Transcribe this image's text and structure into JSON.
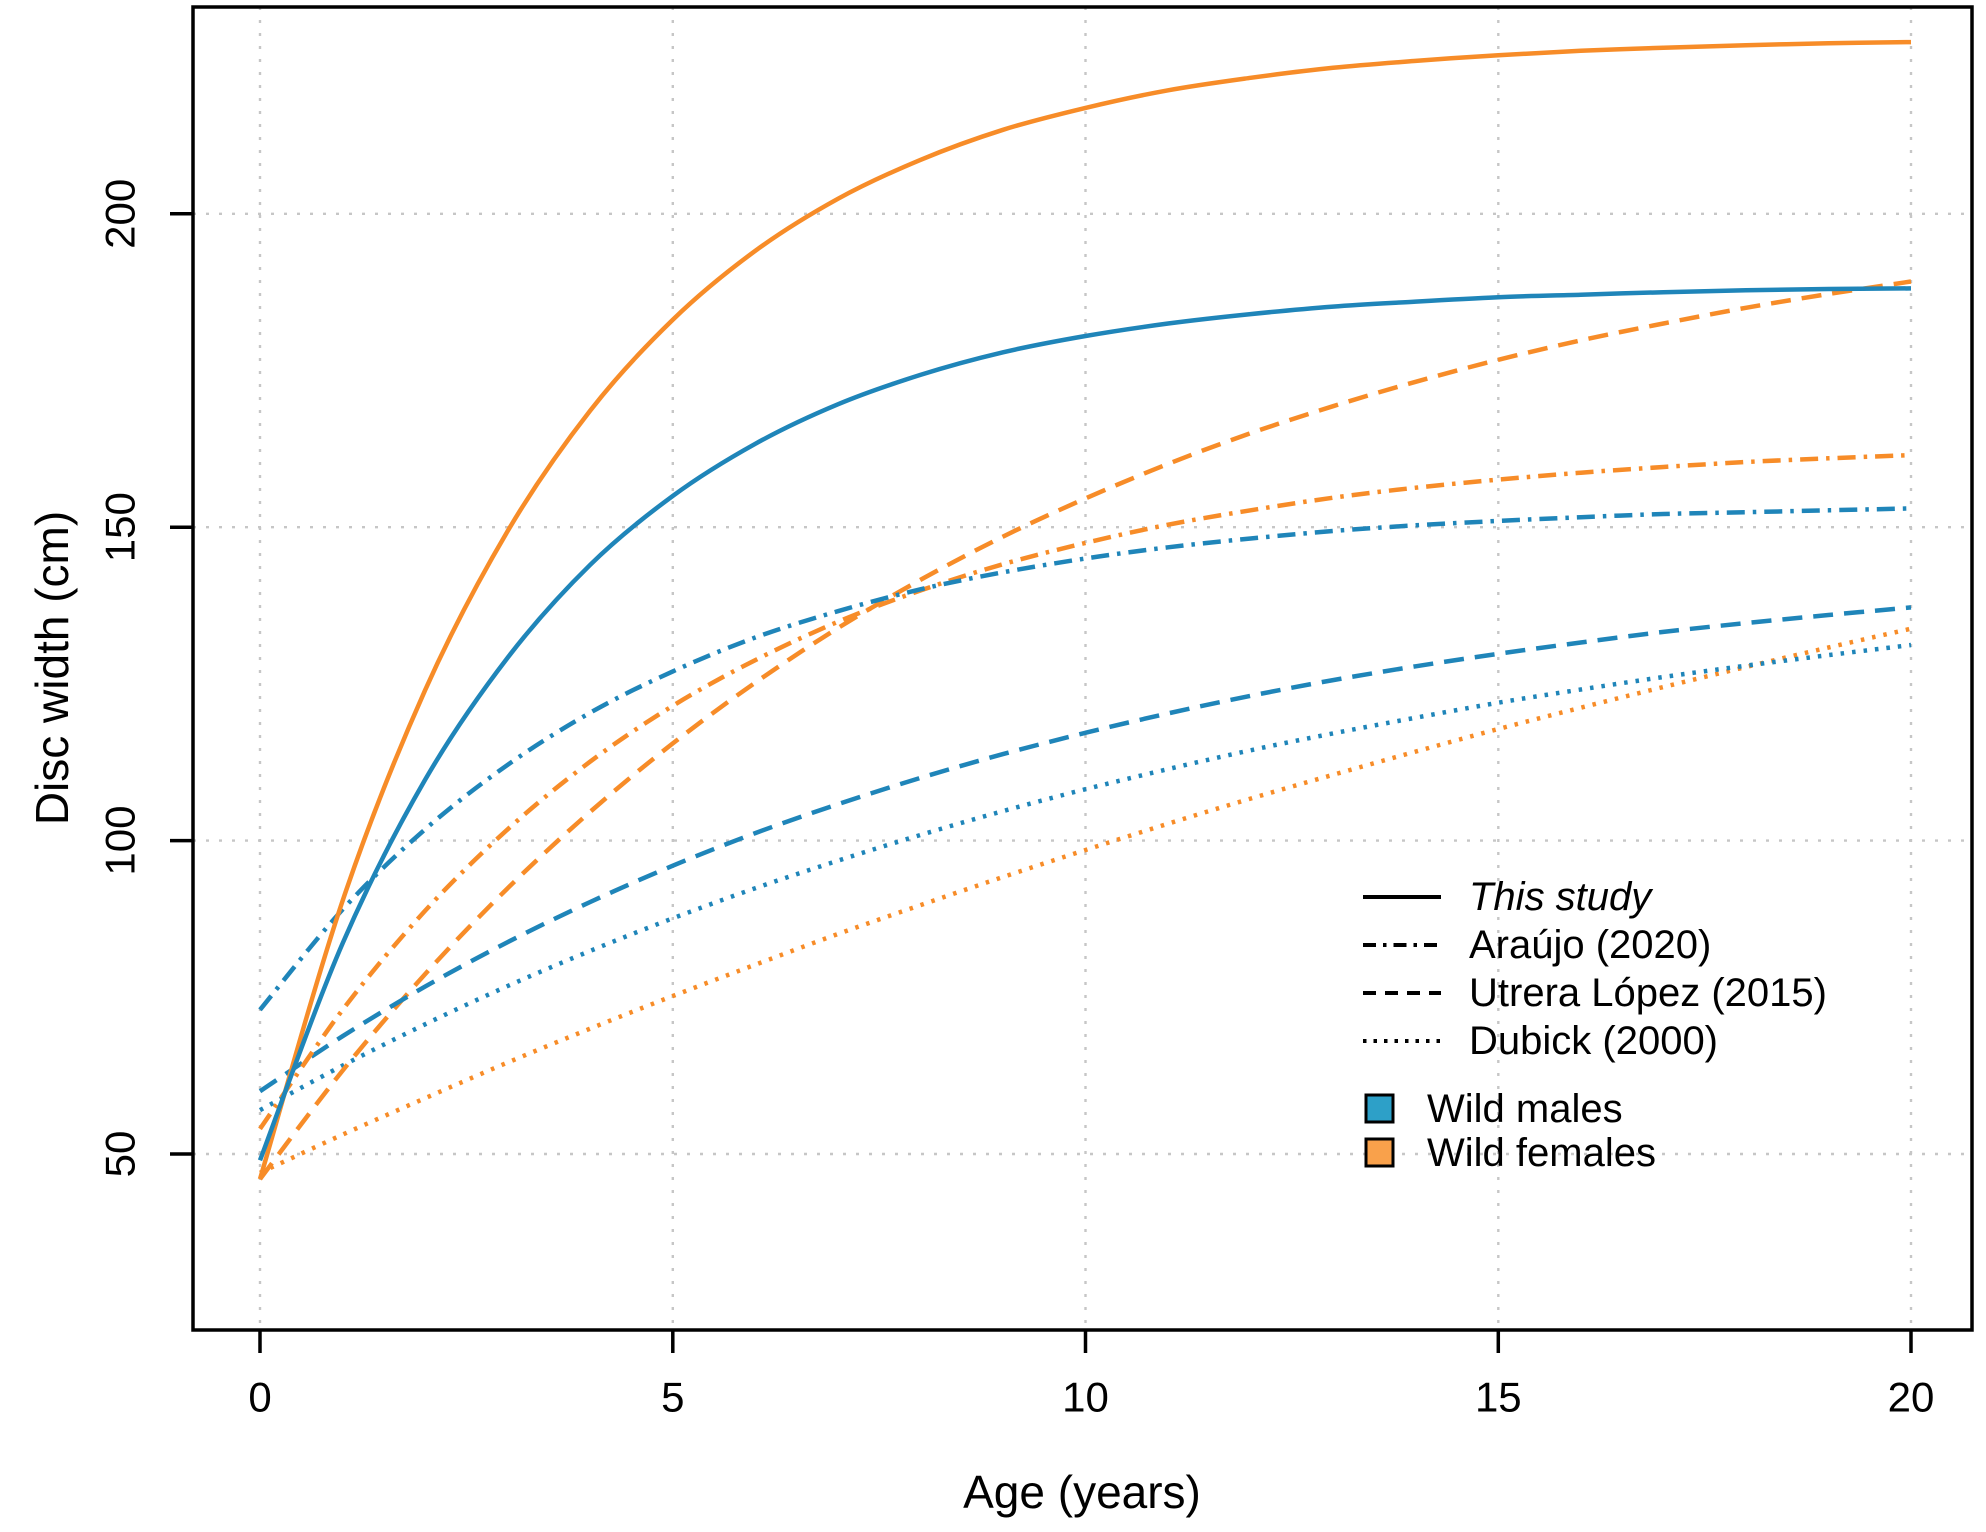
{
  "chart_data": {
    "type": "line",
    "title": "",
    "xlabel": "Age (years)",
    "ylabel": "Disc width (cm)",
    "x_ticks": [
      0,
      5,
      10,
      15,
      20
    ],
    "y_ticks": [
      50,
      100,
      150,
      200
    ],
    "xlim": [
      -0.8,
      20.75
    ],
    "ylim": [
      22,
      233
    ],
    "grid": "dotted light-gray gridlines at every axis tick",
    "legend_position": "inside plot, bottom-right",
    "colors": {
      "wild_males": "#1f85b9",
      "wild_females": "#f78c28",
      "legend_male_swatch": "#2da0c8",
      "legend_female_swatch": "#f9a14b"
    },
    "ages": [
      0,
      1,
      2,
      3,
      4,
      5,
      6,
      7,
      8,
      9,
      10,
      11,
      12,
      13,
      14,
      15,
      16,
      17,
      18,
      19,
      20
    ],
    "series": [
      {
        "id": "dubick-2000-females",
        "study": "Dubick (2000)",
        "group": "Wild females",
        "color": "#f78c28",
        "linestyle": "dotted",
        "values": [
          47.0,
          53.1,
          58.9,
          64.6,
          70.0,
          75.2,
          80.2,
          85.1,
          89.7,
          94.2,
          98.5,
          102.7,
          106.7,
          110.5,
          114.2,
          117.8,
          121.2,
          124.5,
          127.7,
          130.8,
          133.8
        ]
      },
      {
        "id": "dubick-2000-males",
        "study": "Dubick (2000)",
        "group": "Wild males",
        "color": "#1f85b9",
        "linestyle": "dotted",
        "values": [
          57.0,
          64.1,
          70.7,
          76.8,
          82.4,
          87.6,
          92.4,
          96.8,
          100.9,
          104.7,
          108.2,
          111.4,
          114.4,
          117.1,
          119.6,
          122.0,
          124.1,
          126.1,
          127.9,
          129.6,
          131.2
        ]
      },
      {
        "id": "utrera-lopez-2015-females",
        "study": "Utrera López (2015)",
        "group": "Wild females",
        "color": "#f78c28",
        "linestyle": "dashed",
        "values": [
          46.0,
          63.3,
          78.7,
          92.4,
          104.6,
          115.5,
          125.2,
          133.9,
          141.6,
          148.5,
          154.6,
          160.1,
          165.0,
          169.3,
          173.2,
          176.7,
          179.8,
          182.5,
          185.0,
          187.2,
          189.2
        ]
      },
      {
        "id": "utrera-lopez-2015-males",
        "study": "Utrera López (2015)",
        "group": "Wild males",
        "color": "#1f85b9",
        "linestyle": "dashed",
        "values": [
          60.0,
          68.8,
          76.7,
          83.8,
          90.2,
          96.0,
          101.2,
          105.8,
          110.0,
          113.8,
          117.2,
          120.3,
          123.1,
          125.6,
          127.8,
          129.8,
          131.6,
          133.3,
          134.7,
          136.0,
          137.2
        ]
      },
      {
        "id": "araujo-2020-females",
        "study": "Araújo (2020)",
        "group": "Wild females",
        "color": "#f78c28",
        "linestyle": "dashdot",
        "values": [
          54.0,
          73.0,
          88.8,
          101.8,
          112.6,
          121.5,
          128.8,
          134.9,
          139.9,
          144.1,
          147.5,
          150.4,
          152.7,
          154.7,
          156.3,
          157.6,
          158.7,
          159.6,
          160.4,
          161.0,
          161.5
        ]
      },
      {
        "id": "araujo-2020-males",
        "study": "Araújo (2020)",
        "group": "Wild males",
        "color": "#1f85b9",
        "linestyle": "dashdot",
        "values": [
          73.0,
          89.0,
          101.8,
          112.1,
          120.4,
          127.0,
          132.4,
          136.6,
          140.1,
          142.8,
          145.0,
          146.8,
          148.2,
          149.4,
          150.3,
          151.0,
          151.6,
          152.1,
          152.4,
          152.7,
          153.0
        ]
      },
      {
        "id": "this-study-females",
        "study": "This study",
        "group": "Wild females",
        "color": "#f78c28",
        "linestyle": "solid",
        "values": [
          46.0,
          90.4,
          124.0,
          149.4,
          168.6,
          183.1,
          194.1,
          202.4,
          208.6,
          213.4,
          216.9,
          219.7,
          221.7,
          223.3,
          224.4,
          225.3,
          226.0,
          226.5,
          226.9,
          227.2,
          227.4
        ]
      },
      {
        "id": "this-study-males",
        "study": "This study",
        "group": "Wild males",
        "color": "#1f85b9",
        "linestyle": "solid",
        "values": [
          49.0,
          83.6,
          109.7,
          129.2,
          144.0,
          155.0,
          163.3,
          169.6,
          174.3,
          177.9,
          180.5,
          182.5,
          184.0,
          185.2,
          186.0,
          186.7,
          187.1,
          187.5,
          187.8,
          188.0,
          188.1
        ]
      }
    ],
    "line_legend": [
      {
        "label": "This study",
        "linestyle": "solid",
        "italic": true
      },
      {
        "label": "Araújo (2020)",
        "linestyle": "dashdot",
        "italic": false
      },
      {
        "label": "Utrera López (2015)",
        "linestyle": "dashed",
        "italic": false
      },
      {
        "label": "Dubick (2000)",
        "linestyle": "dotted",
        "italic": false
      }
    ],
    "color_legend": [
      {
        "label": "Wild males",
        "color": "#2da0c8"
      },
      {
        "label": "Wild females",
        "color": "#f9a14b"
      }
    ]
  }
}
